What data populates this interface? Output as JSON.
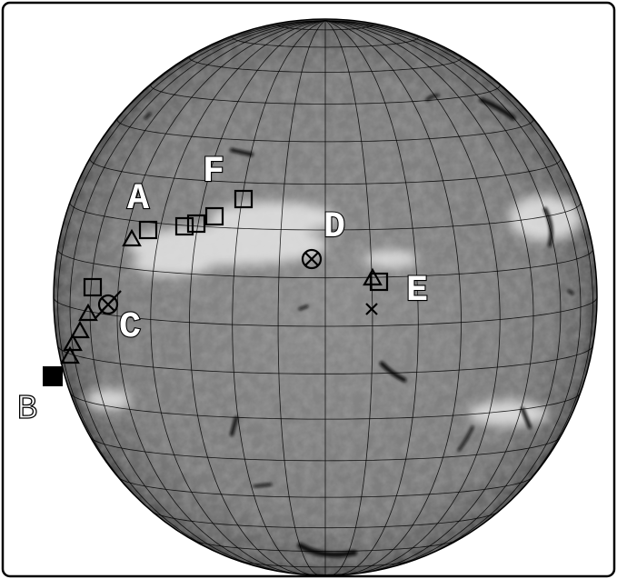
{
  "labels": [
    "A",
    "B",
    "C",
    "D",
    "E",
    "F"
  ]
}
